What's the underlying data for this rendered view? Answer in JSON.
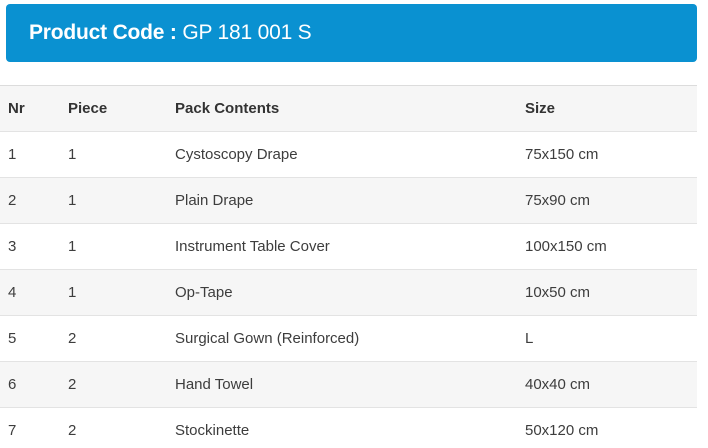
{
  "banner": {
    "label": "Product Code",
    "separator": " : ",
    "code": "GP 181 001 S",
    "bg_color": "#0a91d1",
    "text_color": "#ffffff"
  },
  "table": {
    "columns": [
      "Nr",
      "Piece",
      "Pack Contents",
      "Size"
    ],
    "rows": [
      {
        "nr": "1",
        "piece": "1",
        "contents": "Cystoscopy Drape",
        "size": "75x150 cm"
      },
      {
        "nr": "2",
        "piece": "1",
        "contents": "Plain Drape",
        "size": "75x90 cm"
      },
      {
        "nr": "3",
        "piece": "1",
        "contents": "Instrument Table Cover",
        "size": "100x150 cm"
      },
      {
        "nr": "4",
        "piece": "1",
        "contents": "Op-Tape",
        "size": "10x50 cm"
      },
      {
        "nr": "5",
        "piece": "2",
        "contents": "Surgical Gown (Reinforced)",
        "size": "L"
      },
      {
        "nr": "6",
        "piece": "2",
        "contents": "Hand Towel",
        "size": "40x40 cm"
      },
      {
        "nr": "7",
        "piece": "2",
        "contents": "Stockinette",
        "size": "50x120 cm"
      }
    ],
    "stripe_color": "#f6f6f6",
    "border_color": "#e3e3e3"
  }
}
